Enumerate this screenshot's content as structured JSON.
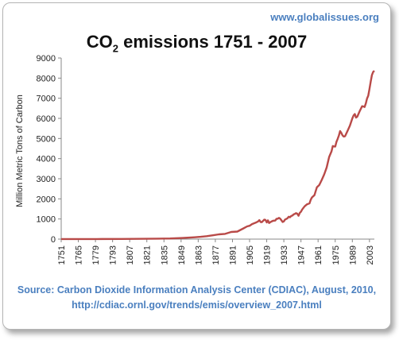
{
  "header": {
    "site": "www.globalissues.org"
  },
  "chart_data": {
    "type": "line",
    "title_main": "CO",
    "title_sub": "2",
    "title_rest": " emissions 1751 - 2007",
    "ylabel": "Million Metric Tons of Carbon",
    "xlabel": "",
    "ylim": [
      0,
      9000
    ],
    "yticks": [
      "0",
      "1000",
      "2000",
      "3000",
      "4000",
      "5000",
      "6000",
      "7000",
      "8000",
      "9000"
    ],
    "xticks": [
      "1751",
      "1765",
      "1779",
      "1793",
      "1807",
      "1821",
      "1835",
      "1849",
      "1863",
      "1877",
      "1891",
      "1905",
      "1919",
      "1933",
      "1947",
      "1961",
      "1975",
      "1989",
      "2003"
    ],
    "xlim": [
      1751,
      2007
    ],
    "grid": false,
    "legend": "none",
    "line_color": "#b94a48",
    "series": [
      {
        "x": [
          1751,
          1780,
          1800,
          1810,
          1820,
          1830,
          1840,
          1850,
          1860,
          1865,
          1870,
          1875,
          1880,
          1885,
          1890,
          1895,
          1900,
          1903,
          1905,
          1907,
          1910,
          1912,
          1913,
          1914,
          1915,
          1917,
          1918,
          1919,
          1920,
          1921,
          1922,
          1924,
          1926,
          1927,
          1928,
          1929,
          1930,
          1931,
          1932,
          1933,
          1934,
          1936,
          1937,
          1938,
          1939,
          1940,
          1941,
          1942,
          1943,
          1944,
          1945,
          1946,
          1947,
          1948,
          1950,
          1952,
          1954,
          1955,
          1956,
          1958,
          1960,
          1962,
          1964,
          1966,
          1968,
          1970,
          1972,
          1973,
          1974,
          1975,
          1976,
          1977,
          1978,
          1979,
          1980,
          1981,
          1982,
          1983,
          1985,
          1987,
          1989,
          1990,
          1991,
          1992,
          1993,
          1995,
          1997,
          1998,
          1999,
          2000,
          2001,
          2002,
          2003,
          2004,
          2005,
          2006,
          2007
        ],
        "y": [
          3,
          5,
          8,
          10,
          14,
          24,
          33,
          54,
          91,
          115,
          147,
          188,
          236,
          261,
          356,
          375,
          534,
          630,
          663,
          746,
          819,
          880,
          943,
          850,
          840,
          967,
          954,
          830,
          932,
          803,
          843,
          906,
          922,
          1006,
          1015,
          1053,
          1013,
          940,
          848,
          880,
          972,
          1036,
          1114,
          1086,
          1150,
          1170,
          1227,
          1250,
          1291,
          1265,
          1161,
          1299,
          1366,
          1473,
          1630,
          1732,
          1777,
          1960,
          2072,
          2182,
          2577,
          2690,
          2940,
          3216,
          3561,
          4083,
          4362,
          4628,
          4607,
          4597,
          4833,
          4978,
          5151,
          5367,
          5278,
          5150,
          5097,
          5113,
          5363,
          5632,
          6000,
          6144,
          6216,
          6039,
          6082,
          6355,
          6602,
          6591,
          6565,
          6734,
          6986,
          7124,
          7447,
          7825,
          8146,
          8308,
          8365
        ]
      }
    ]
  },
  "source": {
    "line1": "Source: Carbon Dioxide Information Analysis Center (CDIAC), August, 2010,",
    "line2": "http://cdiac.ornl.gov/trends/emis/overview_2007.html"
  }
}
